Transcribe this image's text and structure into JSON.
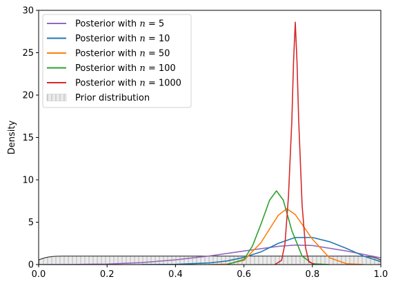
{
  "chart_data": {
    "type": "line",
    "title": "",
    "xlabel": "",
    "ylabel": "Density",
    "xlim": [
      0,
      1
    ],
    "ylim": [
      0,
      30
    ],
    "x_ticks": [
      0.0,
      0.2,
      0.4,
      0.6,
      0.8,
      1.0
    ],
    "x_tick_labels": [
      "0.0",
      "0.2",
      "0.4",
      "0.6",
      "0.8",
      "1.0"
    ],
    "y_ticks": [
      0,
      5,
      10,
      15,
      20,
      25,
      30
    ],
    "y_tick_labels": [
      "0",
      "5",
      "10",
      "15",
      "20",
      "25",
      "30"
    ],
    "grid": false,
    "legend_position": "top-left",
    "series": [
      {
        "name": "Posterior with n = 5",
        "label_prefix": "Posterior with ",
        "label_var": "n",
        "label_eq": " = ",
        "label_num": "5",
        "color": "#9467bd",
        "x": [
          0.0,
          0.1,
          0.2,
          0.3,
          0.4,
          0.5,
          0.6,
          0.7,
          0.75,
          0.8,
          0.9,
          1.0
        ],
        "y": [
          0.0,
          0.01,
          0.06,
          0.23,
          0.56,
          1.02,
          1.6,
          2.15,
          2.3,
          2.25,
          1.6,
          0.8
        ]
      },
      {
        "name": "Posterior with n = 10",
        "label_prefix": "Posterior with ",
        "label_var": "n",
        "label_eq": " = ",
        "label_num": "10",
        "color": "#1f77b4",
        "x": [
          0.3,
          0.4,
          0.5,
          0.55,
          0.6,
          0.65,
          0.7,
          0.75,
          0.8,
          0.85,
          0.9,
          0.95,
          1.0
        ],
        "y": [
          0.0,
          0.03,
          0.2,
          0.42,
          0.85,
          1.5,
          2.5,
          3.2,
          3.2,
          2.7,
          1.9,
          1.0,
          0.35
        ]
      },
      {
        "name": "Posterior with n = 50",
        "label_prefix": "Posterior with ",
        "label_var": "n",
        "label_eq": " = ",
        "label_num": "50",
        "color": "#ff7f0e",
        "x": [
          0.5,
          0.55,
          0.6,
          0.65,
          0.7,
          0.725,
          0.75,
          0.8,
          0.85,
          0.9,
          0.95
        ],
        "y": [
          0.0,
          0.05,
          0.5,
          2.6,
          5.8,
          6.6,
          5.9,
          3.0,
          0.8,
          0.1,
          0.0
        ]
      },
      {
        "name": "Posterior with n = 100",
        "label_prefix": "Posterior with ",
        "label_var": "n",
        "label_eq": " = ",
        "label_num": "100",
        "color": "#2ca02c",
        "x": [
          0.55,
          0.6,
          0.625,
          0.65,
          0.675,
          0.695,
          0.715,
          0.74,
          0.77,
          0.8,
          0.85
        ],
        "y": [
          0.0,
          0.6,
          2.2,
          4.8,
          7.6,
          8.7,
          7.6,
          4.0,
          1.0,
          0.1,
          0.0
        ]
      },
      {
        "name": "Posterior with n = 1000",
        "label_prefix": "Posterior with ",
        "label_var": "n",
        "label_eq": " = ",
        "label_num": "1000",
        "color": "#d62728",
        "x": [
          0.69,
          0.71,
          0.72,
          0.73,
          0.74,
          0.745,
          0.75,
          0.755,
          0.76,
          0.77,
          0.78,
          0.79,
          0.81
        ],
        "y": [
          0.0,
          0.5,
          2.5,
          8.0,
          17.0,
          24.0,
          28.6,
          24.0,
          17.0,
          7.0,
          2.0,
          0.3,
          0.0
        ]
      }
    ],
    "prior": {
      "name": "Prior distribution",
      "color": "#e6e6e6",
      "hatch_color": "#b0b0b0",
      "line_color": "#333333",
      "x": [
        0.0,
        0.01,
        0.02,
        0.03,
        0.04,
        0.05,
        0.07,
        0.1,
        0.9,
        0.93,
        0.95,
        0.97,
        0.98,
        0.99,
        1.0
      ],
      "y": [
        0.55,
        0.7,
        0.82,
        0.9,
        0.95,
        0.98,
        1.0,
        1.0,
        1.0,
        1.0,
        0.98,
        0.92,
        0.85,
        0.72,
        0.55
      ]
    }
  }
}
